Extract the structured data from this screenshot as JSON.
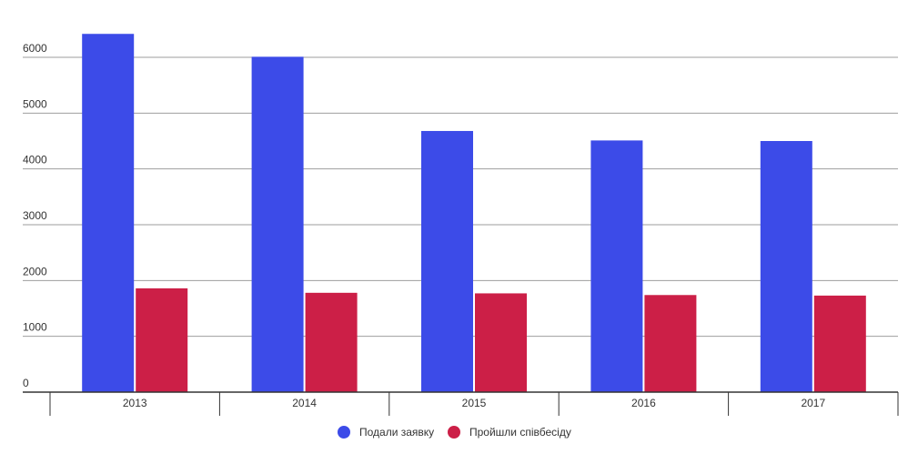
{
  "chart_data": {
    "type": "bar",
    "title": "",
    "xlabel": "",
    "ylabel": "",
    "categories": [
      "2013",
      "2014",
      "2015",
      "2016",
      "2017"
    ],
    "series": [
      {
        "name": "Подали заявку",
        "color": "#3c4be8",
        "values": [
          6420,
          6010,
          4680,
          4510,
          4500
        ]
      },
      {
        "name": "Пройшли співбесіду",
        "color": "#cc1f47",
        "values": [
          1860,
          1780,
          1770,
          1740,
          1730
        ]
      }
    ],
    "ylim": [
      0,
      6000
    ],
    "yticks": [
      "0",
      "1000",
      "2000",
      "3000",
      "4000",
      "5000",
      "6000"
    ],
    "grid": true,
    "legend": "bottom-center"
  }
}
